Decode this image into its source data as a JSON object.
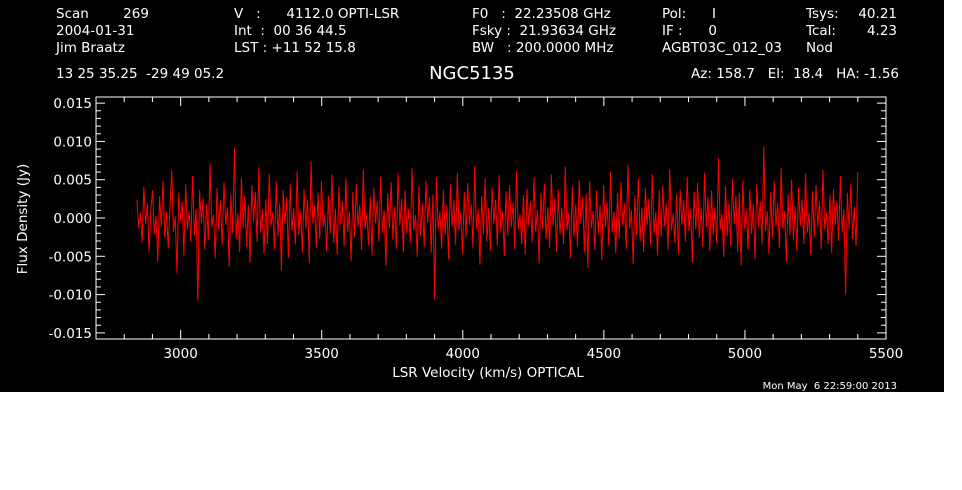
{
  "header": {
    "col1": [
      "Scan        269",
      "2004-01-31",
      "Jim Braatz"
    ],
    "col2": [
      "V   :      4112.0 OPTI-LSR",
      "Int  :  00 36 44.5",
      "LST : +11 52 15.8"
    ],
    "col3": [
      "F0   :  22.23508 GHz",
      "Fsky :  21.93634 GHz",
      "BW   : 200.0000 MHz"
    ],
    "col4": [
      "Pol:      I",
      "IF :      0",
      "AGBT03C_012_03"
    ],
    "col5": [
      "Tsys:",
      "Tcal:",
      "Nod"
    ],
    "col6": [
      "40.21",
      "4.23",
      ""
    ],
    "coords": "13 25 35.25  -29 49 05.2",
    "azel": "Az: 158.7   El:  18.4   HA: -1.56"
  },
  "timestamp": "Mon May  6 22:59:00 2013",
  "colors": {
    "background": "#000000",
    "axes": "#ffffff",
    "series": "#ff0000"
  },
  "chart_data": {
    "type": "line",
    "title": "NGC5135",
    "xlabel": "LSR Velocity (km/s) OPTICAL",
    "ylabel": "Flux Density (Jy)",
    "xlim": [
      2700,
      5500
    ],
    "ylim": [
      -0.0158,
      0.0158
    ],
    "xticks": [
      3000,
      3500,
      4000,
      4500,
      5000,
      5500
    ],
    "xtick_labels": [
      "3000",
      "3500",
      "4000",
      "4500",
      "5000",
      "5500"
    ],
    "yticks": [
      -0.015,
      -0.01,
      -0.005,
      0.0,
      0.005,
      0.01,
      0.015
    ],
    "ytick_labels": [
      "-0.015",
      "-0.010",
      "-0.005",
      "0.000",
      "0.005",
      "0.010",
      "0.015"
    ],
    "grid": false,
    "series": [
      {
        "color": "#ff0000",
        "x_start": 2845,
        "x_end": 5400,
        "y": [
          0.0024,
          -0.0013,
          0.0007,
          -0.0032,
          0.0041,
          -0.0008,
          0.0019,
          -0.0045,
          0.0011,
          0.0036,
          -0.0021,
          0.0003,
          -0.0057,
          0.0028,
          -0.0011,
          0.0049,
          -0.0026,
          0.0008,
          -0.0039,
          0.0015,
          0.0062,
          -0.0018,
          0.0002,
          -0.0072,
          0.0033,
          -0.0004,
          0.0021,
          -0.0049,
          0.0044,
          -0.0015,
          0.0009,
          -0.0031,
          0.0055,
          -0.0023,
          0.0012,
          -0.0108,
          0.0037,
          -0.0007,
          0.0026,
          -0.0042,
          0.0018,
          -0.0029,
          0.0071,
          -0.0012,
          0.0004,
          -0.0053,
          0.0039,
          -0.0016,
          0.0023,
          -0.0036,
          0.0047,
          -0.0009,
          0.0014,
          -0.0064,
          0.0031,
          -0.002,
          0.0092,
          -0.0027,
          0.0006,
          -0.0044,
          0.0052,
          -0.0013,
          0.0029,
          -0.0038,
          0.0017,
          -0.0058,
          0.0043,
          -0.0005,
          0.0034,
          -0.0031,
          0.0066,
          -0.0019,
          0.0011,
          -0.0047,
          0.0025,
          -0.0034,
          0.0058,
          -0.0011,
          0.0007,
          -0.0041,
          0.0049,
          -0.0024,
          0.0019,
          -0.0068,
          0.0036,
          -0.0008,
          0.0027,
          -0.0052,
          0.0044,
          -0.0017,
          0.0013,
          -0.0035,
          0.0061,
          -0.0022,
          0.0009,
          -0.0046,
          0.0038,
          -0.0014,
          0.0024,
          -0.0059,
          0.0074,
          -0.0006,
          0.0016,
          -0.0039,
          0.0033,
          -0.0027,
          0.0048,
          -0.0012,
          0.0005,
          -0.0043,
          0.0029,
          -0.0021,
          0.0057,
          -0.0033,
          0.0012,
          -0.0048,
          0.0041,
          -0.0009,
          0.0022,
          -0.0037,
          0.0052,
          -0.0018,
          0.0008,
          -0.0056,
          0.0034,
          -0.0025,
          0.0045,
          -0.0011,
          0.0017,
          -0.0042,
          0.0063,
          -0.0015,
          0.0006,
          -0.0035,
          0.0028,
          -0.0049,
          0.0039,
          -0.0007,
          0.0021,
          -0.0031,
          0.0054,
          -0.0019,
          0.001,
          -0.0062,
          0.0032,
          -0.0013,
          0.0047,
          -0.0028,
          0.0015,
          -0.004,
          0.0058,
          -0.001,
          0.0025,
          -0.0045,
          0.0036,
          -0.002,
          0.0012,
          -0.0033,
          0.0065,
          -0.0016,
          0.0004,
          -0.0051,
          0.0042,
          -0.0024,
          0.0019,
          -0.0038,
          0.0049,
          -0.0006,
          0.0027,
          -0.0046,
          0.0031,
          -0.0107,
          0.0053,
          -0.0014,
          0.0008,
          -0.004,
          0.0037,
          -0.0022,
          0.0016,
          -0.0054,
          0.0044,
          -0.0011,
          0.0023,
          -0.0035,
          0.0059,
          -0.0017,
          0.0007,
          -0.0047,
          0.0034,
          -0.0026,
          0.0046,
          -0.0009,
          0.0018,
          -0.0039,
          0.0068,
          -0.0014,
          0.0011,
          -0.0061,
          0.0029,
          -0.0021,
          0.0051,
          -0.0031,
          0.0013,
          -0.0043,
          0.004,
          -0.0008,
          0.0024,
          -0.0036,
          0.0056,
          -0.0019,
          0.0009,
          -0.005,
          0.0035,
          -0.0023,
          0.0043,
          -0.0012,
          0.002,
          -0.0041,
          0.0062,
          -0.0015,
          0.0005,
          -0.0034,
          0.003,
          -0.0048,
          0.0038,
          -0.001,
          0.0022,
          -0.0032,
          0.0053,
          -0.0018,
          0.0011,
          -0.0059,
          0.0033,
          -0.0014,
          0.0045,
          -0.0027,
          0.0014,
          -0.0039,
          0.0057,
          -0.0011,
          0.0026,
          -0.0044,
          0.0037,
          -0.0021,
          0.0013,
          -0.0034,
          0.0067,
          -0.0016,
          0.0006,
          -0.0052,
          0.0041,
          -0.0025,
          0.0018,
          -0.0037,
          0.005,
          -0.0007,
          0.0028,
          -0.0045,
          0.0032,
          -0.0065,
          0.0048,
          -0.0013,
          0.0009,
          -0.0042,
          0.0036,
          -0.002,
          0.0017,
          -0.0055,
          0.0043,
          -0.0012,
          0.0021,
          -0.0036,
          0.006,
          -0.0018,
          0.0008,
          -0.0046,
          0.0033,
          -0.0027,
          0.0047,
          -0.001,
          0.0019,
          -0.004,
          0.007,
          -0.0013,
          0.001,
          -0.006,
          0.003,
          -0.0022,
          0.0052,
          -0.003,
          0.0014,
          -0.0044,
          0.0039,
          -0.0009,
          0.0025,
          -0.0035,
          0.0057,
          -0.002,
          0.0008,
          -0.0049,
          0.0036,
          -0.0024,
          0.0042,
          -0.0011,
          0.0019,
          -0.0042,
          0.0064,
          -0.0016,
          0.0006,
          -0.0033,
          0.0031,
          -0.0047,
          0.0037,
          -0.0009,
          0.0023,
          -0.0031,
          0.0054,
          -0.0017,
          0.0012,
          -0.0058,
          0.0034,
          -0.0015,
          0.0046,
          -0.0026,
          0.0013,
          -0.0038,
          0.0059,
          -0.0012,
          0.0027,
          -0.0043,
          0.0036,
          -0.0022,
          0.0014,
          -0.0033,
          0.0078,
          -0.0015,
          0.0005,
          -0.0051,
          0.0042,
          -0.0024,
          0.0019,
          -0.0036,
          0.0051,
          -0.0008,
          0.0029,
          -0.0044,
          0.0033,
          -0.0062,
          0.0049,
          -0.0014,
          0.001,
          -0.0041,
          0.0037,
          -0.0021,
          0.0018,
          -0.0054,
          0.0044,
          -0.0011,
          0.0022,
          -0.0035,
          0.0093,
          -0.0017,
          0.0009,
          -0.0047,
          0.0034,
          -0.0026,
          0.0048,
          -0.0011,
          0.002,
          -0.0039,
          0.0066,
          -0.0014,
          0.0009,
          -0.0058,
          0.0031,
          -0.0023,
          0.005,
          -0.0029,
          0.0015,
          -0.0043,
          0.004,
          -0.001,
          0.0024,
          -0.0034,
          0.0058,
          -0.0019,
          0.0007,
          -0.0048,
          0.0035,
          -0.0025,
          0.0043,
          -0.0012,
          0.0021,
          -0.0041,
          0.0063,
          -0.0015,
          0.0007,
          -0.0034,
          0.003,
          -0.0046,
          0.0038,
          -0.001,
          0.0022,
          -0.003,
          0.0055,
          -0.0018,
          0.0011,
          -0.01,
          0.0033,
          -0.0014,
          0.0045,
          -0.0027,
          0.0015,
          -0.0037,
          0.006
        ]
      }
    ]
  }
}
